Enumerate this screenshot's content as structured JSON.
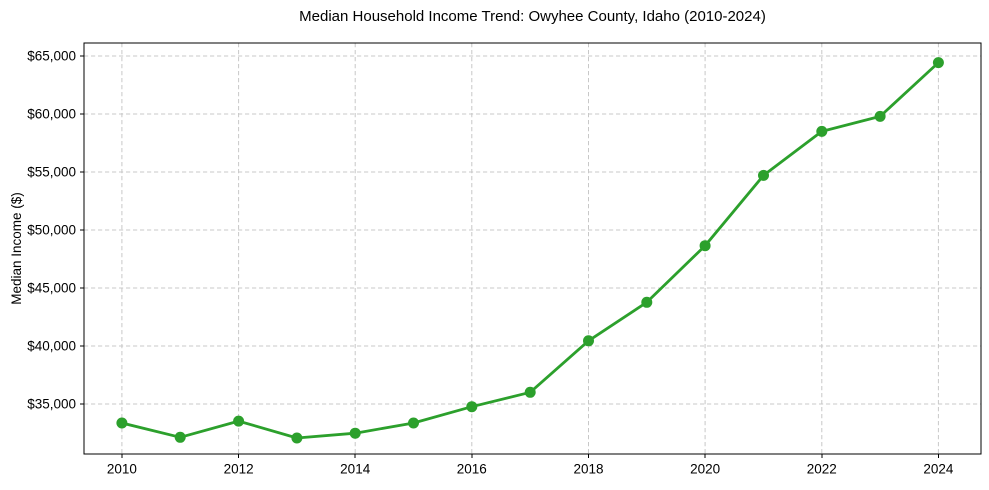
{
  "page": {
    "background": "#ffffff"
  },
  "chart_data": {
    "type": "line",
    "title": "Median Household Income Trend: Owyhee County, Idaho (2010-2024)",
    "xlabel": "",
    "ylabel": "Median Income ($)",
    "x": [
      2010,
      2011,
      2012,
      2013,
      2014,
      2015,
      2016,
      2017,
      2018,
      2019,
      2020,
      2021,
      2022,
      2023,
      2024
    ],
    "series": [
      {
        "name": "Median household income",
        "color": "#2ca02c",
        "marker": "circle",
        "values": [
          33360,
          32130,
          33530,
          32070,
          32480,
          33360,
          34770,
          36010,
          40450,
          43770,
          48650,
          54710,
          58500,
          59790,
          64430
        ]
      }
    ],
    "x_ticks": [
      2010,
      2012,
      2014,
      2016,
      2018,
      2020,
      2022,
      2024
    ],
    "x_tick_labels": [
      "2010",
      "2012",
      "2014",
      "2016",
      "2018",
      "2020",
      "2022",
      "2024"
    ],
    "y_ticks": [
      35000,
      40000,
      45000,
      50000,
      55000,
      60000,
      65000
    ],
    "y_tick_labels": [
      "$35,000",
      "$40,000",
      "$45,000",
      "$50,000",
      "$55,000",
      "$60,000",
      "$65,000"
    ],
    "xlim": [
      2009.35,
      2024.73
    ],
    "ylim": [
      30690,
      66120
    ],
    "grid": true,
    "grid_style": "dashed",
    "grid_color": "#c8c8c8",
    "axis_color": "#000000",
    "text_color": "#000000",
    "line_color": "#2ca02c",
    "legend": null
  }
}
